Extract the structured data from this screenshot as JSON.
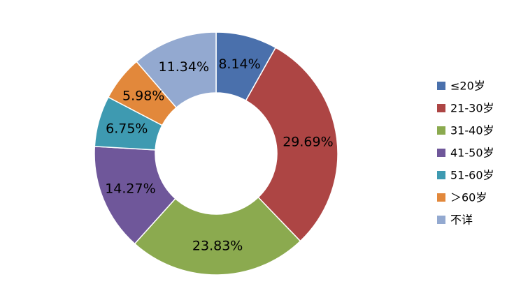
{
  "chart_data": {
    "type": "pie",
    "variant": "donut",
    "title": "",
    "categories": [
      "≤20岁",
      "21-30岁",
      "31-40岁",
      "41-50岁",
      "51-60岁",
      "＞60岁",
      "不详"
    ],
    "values": [
      8.14,
      29.69,
      23.83,
      14.27,
      6.75,
      5.98,
      11.34
    ],
    "data_labels": [
      "8.14%",
      "29.69%",
      "23.83%",
      "14.27%",
      "6.75%",
      "5.98%",
      "11.34%"
    ],
    "colors": [
      "#4A70AC",
      "#AD4544",
      "#8BAA4F",
      "#6F579A",
      "#3E9AB1",
      "#E2883B",
      "#93A9D0"
    ],
    "start_angle_deg": 0,
    "direction": "clockwise",
    "legend_position": "right",
    "slice_border_color": "#ffffff"
  }
}
